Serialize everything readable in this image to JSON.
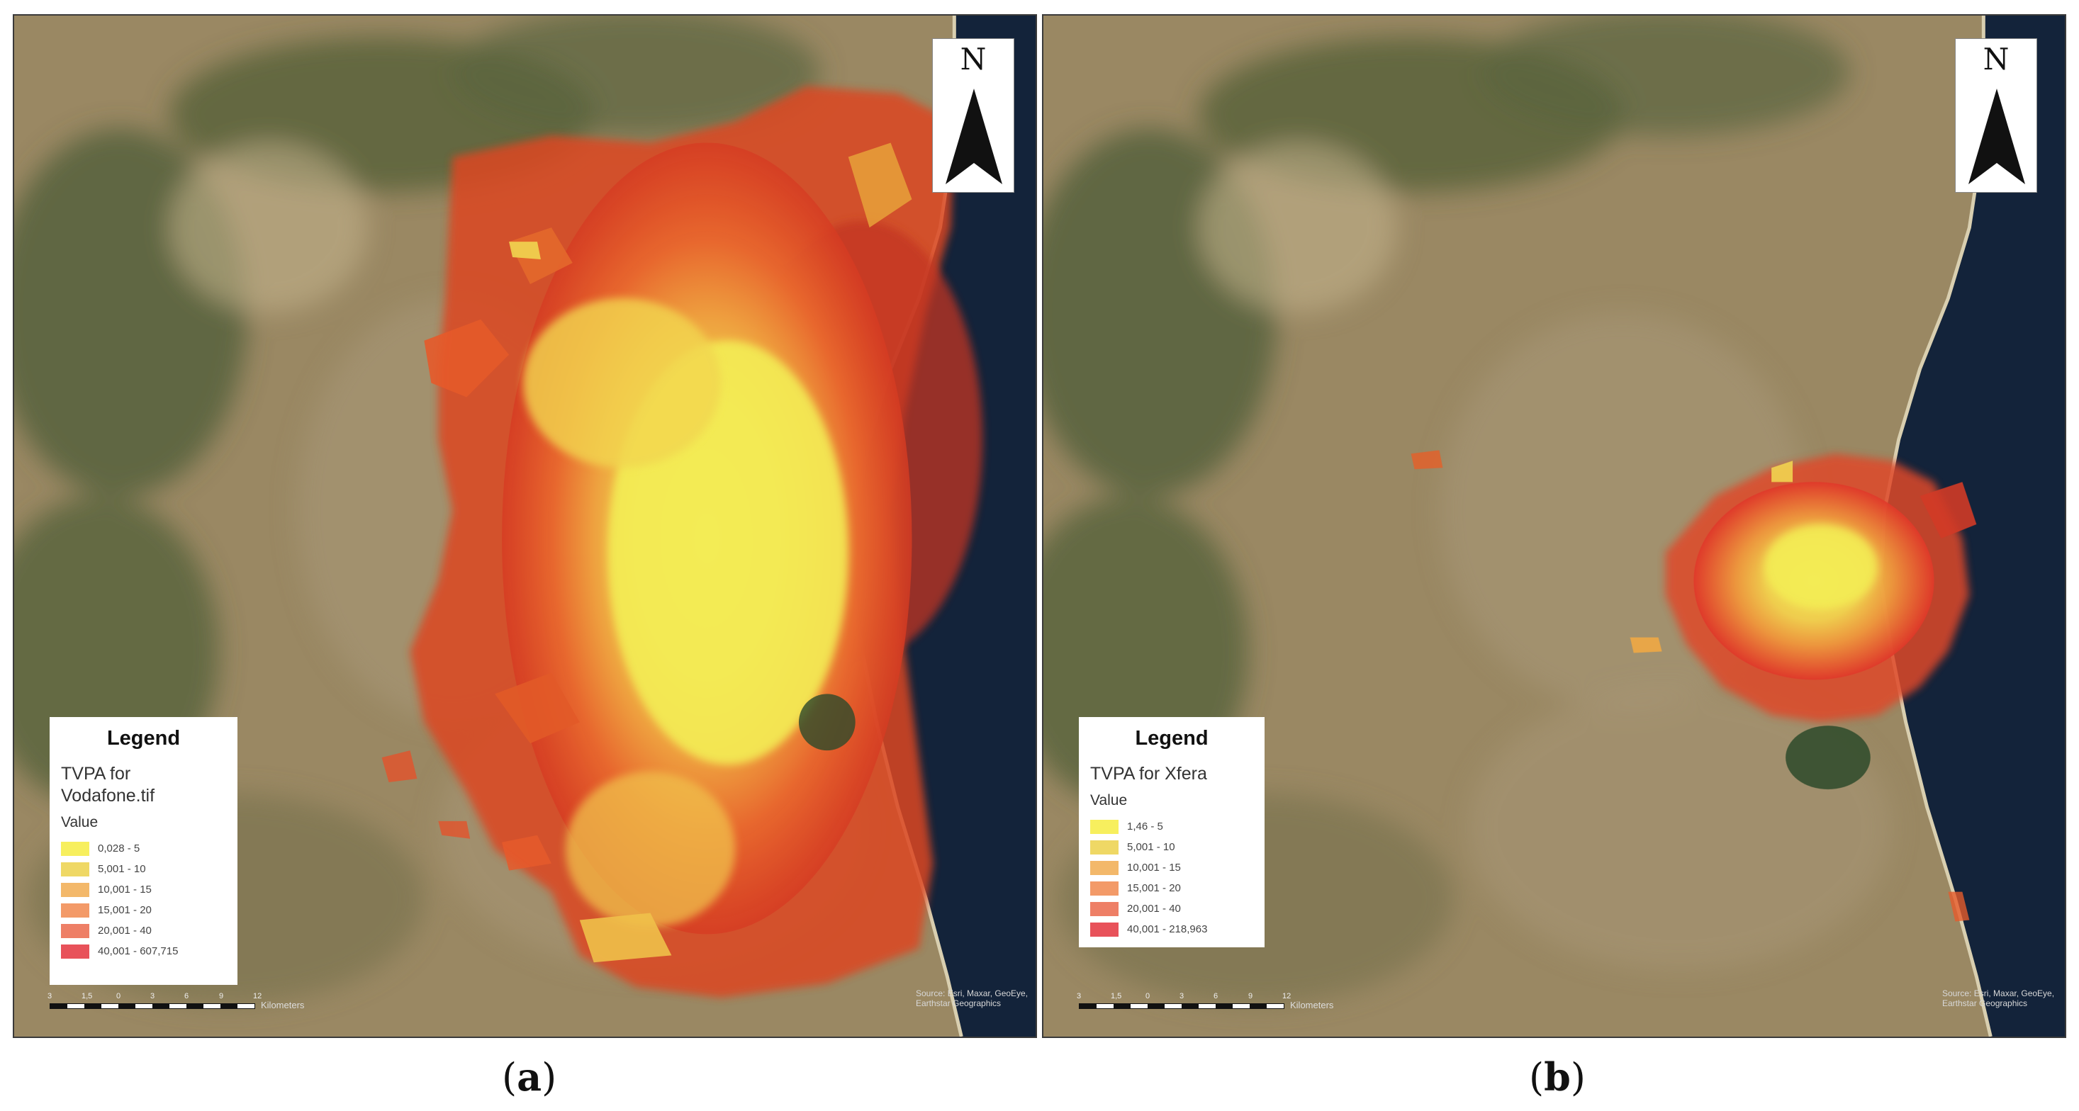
{
  "panels": {
    "a": {
      "north_label": "N",
      "legend": {
        "title": "Legend",
        "layer_name": "TVPA for Vodafone.tif",
        "field_label": "Value",
        "classes": [
          {
            "label": "0,028 - 5",
            "color": "#f7ef5e"
          },
          {
            "label": "5,001 - 10",
            "color": "#efd865"
          },
          {
            "label": "10,001 - 15",
            "color": "#f3b86a"
          },
          {
            "label": "15,001 - 20",
            "color": "#f39a68"
          },
          {
            "label": "20,001 - 40",
            "color": "#ee7f66"
          },
          {
            "label": "40,001 - 607,715",
            "color": "#e8525a"
          }
        ]
      },
      "scale": {
        "ticks": [
          "3",
          "1,5",
          "0",
          "3",
          "6",
          "9",
          "12"
        ],
        "unit": "Kilometers"
      },
      "credit": "Source: Esri, Maxar, GeoEye, Earthstar Geographics",
      "caption_letter": "a"
    },
    "b": {
      "north_label": "N",
      "legend": {
        "title": "Legend",
        "layer_name": "TVPA for Xfera",
        "field_label": "Value",
        "classes": [
          {
            "label": "1,46 - 5",
            "color": "#f7ef5e"
          },
          {
            "label": "5,001 - 10",
            "color": "#efd865"
          },
          {
            "label": "10,001 - 15",
            "color": "#f3b86a"
          },
          {
            "label": "15,001 - 20",
            "color": "#f39a68"
          },
          {
            "label": "20,001 - 40",
            "color": "#ee7f66"
          },
          {
            "label": "40,001 - 218,963",
            "color": "#e8525a"
          }
        ]
      },
      "scale": {
        "ticks": [
          "3",
          "1,5",
          "0",
          "3",
          "6",
          "9",
          "12"
        ],
        "unit": "Kilometers"
      },
      "credit": "Source: Esri, Maxar, GeoEye, Earthstar Geographics",
      "caption_letter": "b"
    }
  },
  "colors": {
    "sea": "#15243a",
    "land": "#9c8b66",
    "mountains": "#4f5a38"
  }
}
